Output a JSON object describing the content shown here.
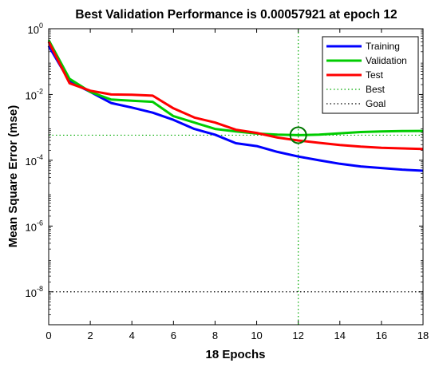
{
  "chart_data": {
    "type": "line",
    "title": "Best Validation Performance is 0.00057921 at epoch 12",
    "xlabel": "18 Epochs",
    "ylabel": "Mean Square Error  (mse)",
    "xlim": [
      0,
      18
    ],
    "ylim": [
      1e-09,
      1
    ],
    "yscale": "log",
    "x_ticks": [
      "0",
      "2",
      "4",
      "6",
      "8",
      "10",
      "12",
      "14",
      "16",
      "18"
    ],
    "y_ticks": [
      {
        "base": "10",
        "exp": "0",
        "value": 1
      },
      {
        "base": "10",
        "exp": "-2",
        "value": 0.01
      },
      {
        "base": "10",
        "exp": "-4",
        "value": 0.0001
      },
      {
        "base": "10",
        "exp": "-6",
        "value": 1e-06
      },
      {
        "base": "10",
        "exp": "-8",
        "value": 1e-08
      }
    ],
    "grid": false,
    "legend_position": "top-right",
    "epochs": [
      0,
      1,
      2,
      3,
      4,
      5,
      6,
      7,
      8,
      9,
      10,
      11,
      12,
      13,
      14,
      15,
      16,
      17,
      18
    ],
    "series": [
      {
        "name": "Training",
        "color": "#0000ff",
        "values": [
          0.3,
          0.025,
          0.012,
          0.0055,
          0.004,
          0.0028,
          0.0017,
          0.0009,
          0.0006,
          0.00033,
          0.00027,
          0.00018,
          0.00013,
          0.0001,
          7.8e-05,
          6.5e-05,
          5.8e-05,
          5.2e-05,
          4.8e-05
        ]
      },
      {
        "name": "Validation",
        "color": "#00cc00",
        "values": [
          0.45,
          0.03,
          0.012,
          0.007,
          0.0065,
          0.006,
          0.0022,
          0.0014,
          0.0009,
          0.00075,
          0.00065,
          0.0006,
          0.00057921,
          0.0006,
          0.00066,
          0.00072,
          0.00075,
          0.00077,
          0.00078
        ]
      },
      {
        "name": "Test",
        "color": "#ff0000",
        "values": [
          0.4,
          0.022,
          0.013,
          0.01,
          0.0098,
          0.0092,
          0.0038,
          0.002,
          0.0014,
          0.00085,
          0.00068,
          0.00049,
          0.0004,
          0.00034,
          0.00029,
          0.00026,
          0.00024,
          0.00023,
          0.00022
        ]
      }
    ],
    "best": {
      "name": "Best",
      "epoch": 12,
      "value": 0.00057921,
      "color": "#00aa00"
    },
    "goal": {
      "name": "Goal",
      "value": 1e-08,
      "color": "#000000"
    }
  }
}
